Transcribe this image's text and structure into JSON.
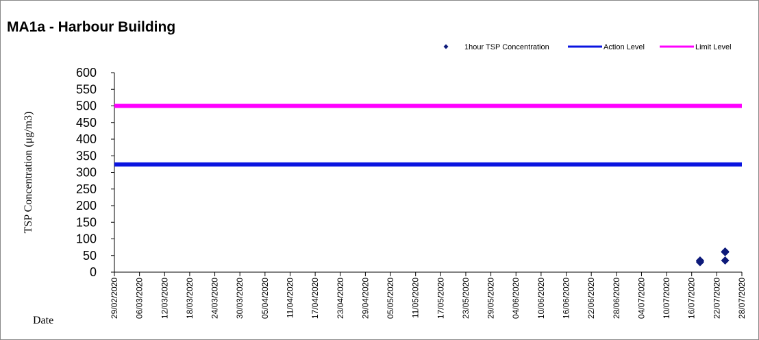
{
  "chart_data": {
    "type": "scatter",
    "title": "MA1a - Harbour Building",
    "ylabel": "TSP Concentration (μg/m3)",
    "xlabel": "Date",
    "ylim": [
      0,
      600
    ],
    "y_ticks": [
      0,
      50,
      100,
      150,
      200,
      250,
      300,
      350,
      400,
      450,
      500,
      550,
      600
    ],
    "x_range": [
      "29/02/2020",
      "28/07/2020"
    ],
    "x_ticks": [
      "29/02/2020",
      "06/03/2020",
      "12/03/2020",
      "18/03/2020",
      "24/03/2020",
      "30/03/2020",
      "05/04/2020",
      "11/04/2020",
      "17/04/2020",
      "23/04/2020",
      "29/04/2020",
      "05/05/2020",
      "11/05/2020",
      "17/05/2020",
      "23/05/2020",
      "29/05/2020",
      "04/06/2020",
      "10/06/2020",
      "16/06/2020",
      "22/06/2020",
      "28/06/2020",
      "04/07/2020",
      "10/07/2020",
      "16/07/2020",
      "22/07/2020",
      "28/07/2020"
    ],
    "legend_position": "top-right",
    "grid": false,
    "series": [
      {
        "name": "1hour TSP Concentration",
        "kind": "points",
        "color": "#0d1a7a",
        "marker": "diamond",
        "points": [
          {
            "x": "18/07/2020",
            "y": 30
          },
          {
            "x": "18/07/2020",
            "y": 33
          },
          {
            "x": "18/07/2020",
            "y": 35
          },
          {
            "x": "24/07/2020",
            "y": 35
          },
          {
            "x": "24/07/2020",
            "y": 60
          },
          {
            "x": "24/07/2020",
            "y": 62
          }
        ]
      },
      {
        "name": "Action Level",
        "kind": "hline",
        "color": "#0a14e0",
        "y": 324
      },
      {
        "name": "Limit Level",
        "kind": "hline",
        "color": "#ff00ff",
        "y": 500
      }
    ]
  }
}
